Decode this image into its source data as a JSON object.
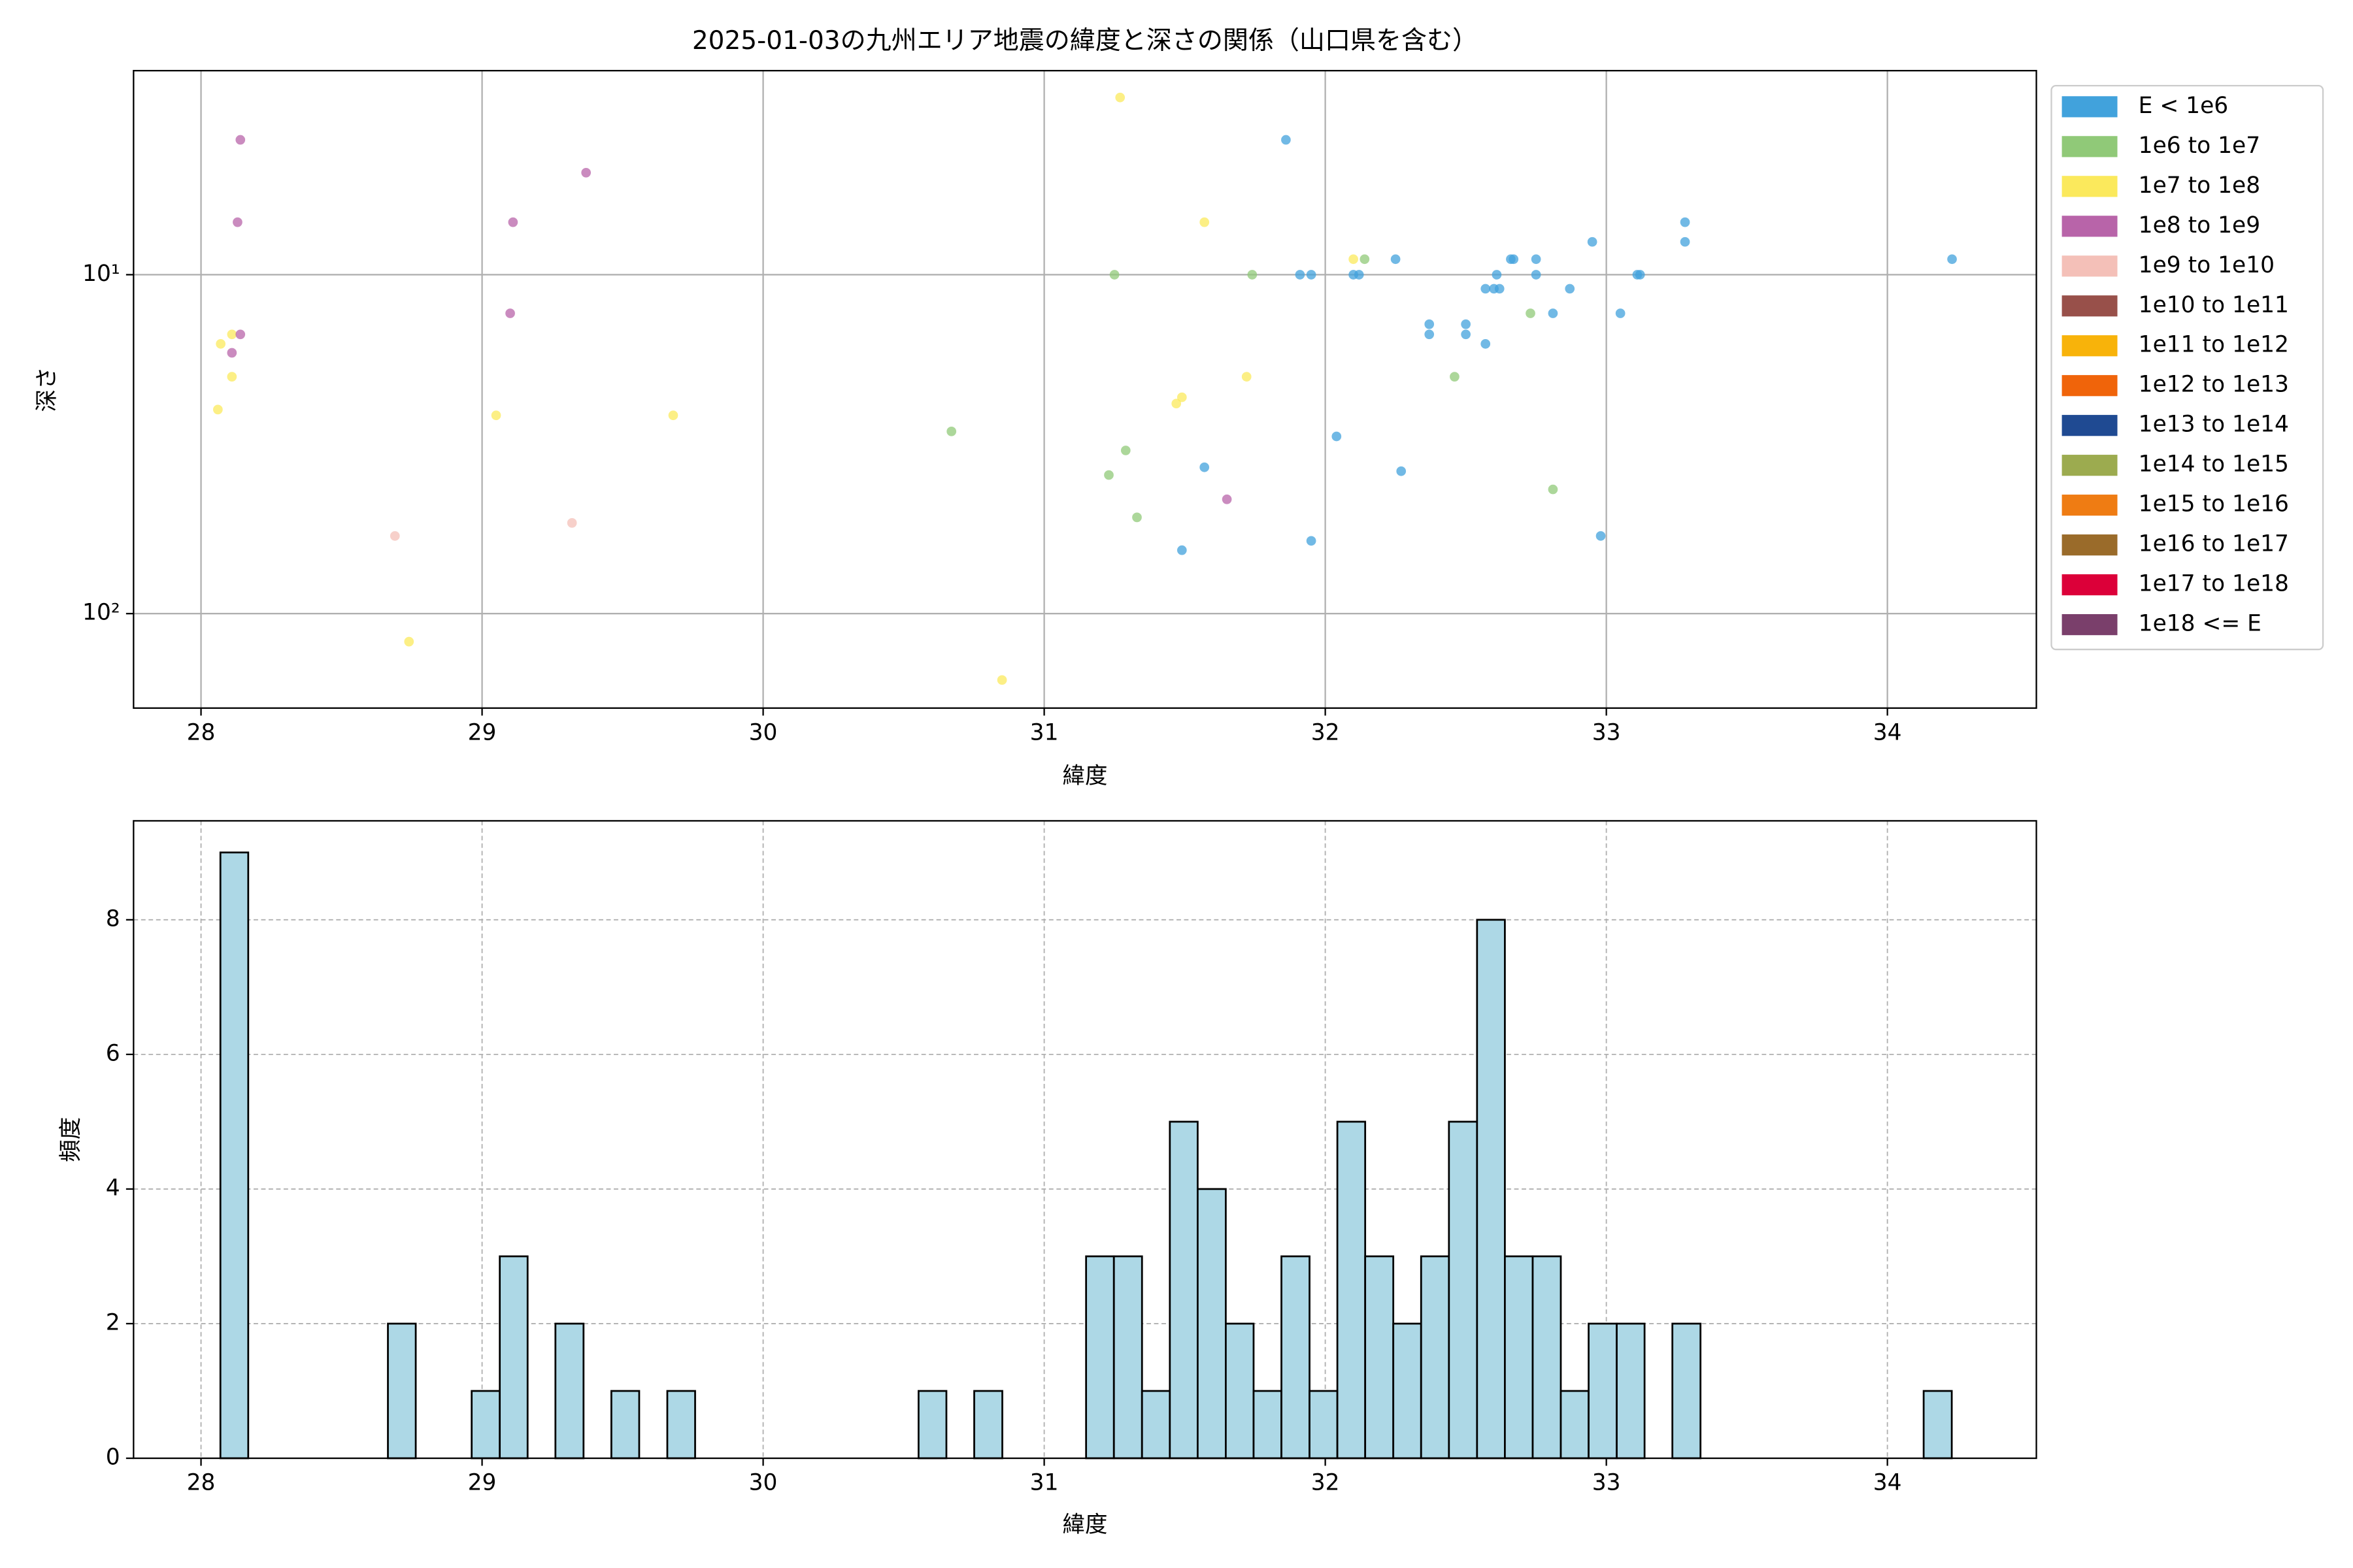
{
  "chart_data": [
    {
      "type": "scatter",
      "title": "2025-01-03の九州エリア地震の緯度と深さの関係（山口県を含む）",
      "xlabel": "緯度",
      "ylabel": "深さ",
      "xlim": [
        27.76,
        34.53
      ],
      "xticks": [
        28,
        29,
        30,
        31,
        32,
        33,
        34
      ],
      "ylim": [
        2.5,
        190
      ],
      "ylog": true,
      "yinverted": true,
      "yticks": [
        {
          "value": 10,
          "label": "10¹"
        },
        {
          "value": 100,
          "label": "10²"
        }
      ],
      "grid": true,
      "grid_style": "solid",
      "legend": "outside right",
      "series": [
        {
          "name": "E < 1e6",
          "color": "#41a2dc",
          "x": [
            31.86,
            31.91,
            31.95,
            32.1,
            32.12,
            32.25,
            32.37,
            32.37,
            32.5,
            32.5,
            32.57,
            32.57,
            32.6,
            32.62,
            32.61,
            32.66,
            32.67,
            32.75,
            32.75,
            32.81,
            32.87,
            32.95,
            33.05,
            33.11,
            33.12,
            33.28,
            33.28,
            34.23,
            31.57,
            32.04,
            32.27,
            31.95,
            32.98,
            31.49
          ],
          "y": [
            4,
            10,
            10,
            10,
            10,
            9,
            14,
            15,
            14,
            15,
            16,
            11,
            11,
            11,
            10,
            9,
            9,
            9,
            10,
            13,
            11,
            8,
            13,
            10,
            10,
            7,
            8,
            9,
            37,
            30,
            38,
            61,
            59,
            65
          ]
        },
        {
          "name": "1e6 to 1e7",
          "color": "#90c978",
          "x": [
            31.25,
            31.74,
            32.14,
            32.46,
            32.73,
            30.67,
            31.29,
            31.23,
            31.33,
            32.81
          ],
          "y": [
            10,
            10,
            9,
            20,
            13,
            29,
            33,
            39,
            52,
            43
          ]
        },
        {
          "name": "1e7 to 1e8",
          "color": "#fbe95c",
          "x": [
            31.27,
            31.57,
            32.1,
            31.72,
            31.49,
            31.47,
            28.07,
            28.11,
            28.06,
            28.11,
            29.05,
            29.68,
            28.74,
            30.85
          ],
          "y": [
            3,
            7,
            9,
            20,
            23,
            24,
            16,
            15,
            25,
            20,
            26,
            26,
            121,
            157
          ]
        },
        {
          "name": "1e8 to 1e9",
          "color": "#b864a9",
          "x": [
            28.14,
            28.13,
            28.14,
            28.11,
            29.37,
            29.11,
            29.1,
            31.65
          ],
          "y": [
            4,
            7,
            15,
            17,
            5,
            7,
            13,
            46
          ]
        },
        {
          "name": "1e9 to 1e10",
          "color": "#f4c0b8",
          "x": [
            28.69,
            29.32
          ],
          "y": [
            59,
            54
          ]
        },
        {
          "name": "1e10 to 1e11",
          "color": "#98504a",
          "x": [],
          "y": []
        },
        {
          "name": "1e11 to 1e12",
          "color": "#f8b30a",
          "x": [],
          "y": []
        },
        {
          "name": "1e12 to 1e13",
          "color": "#f0640a",
          "x": [],
          "y": []
        },
        {
          "name": "1e13 to 1e14",
          "color": "#1f4a92",
          "x": [],
          "y": []
        },
        {
          "name": "1e14 to 1e15",
          "color": "#9cab4f",
          "x": [],
          "y": []
        },
        {
          "name": "1e15 to 1e16",
          "color": "#ef7c13",
          "x": [],
          "y": []
        },
        {
          "name": "1e16 to 1e17",
          "color": "#9a6b2a",
          "x": [],
          "y": []
        },
        {
          "name": "1e17 to 1e18",
          "color": "#dc0039",
          "x": [],
          "y": []
        },
        {
          "name": "1e18 <= E",
          "color": "#7a3f6b",
          "x": [],
          "y": []
        }
      ]
    },
    {
      "type": "histogram",
      "xlabel": "緯度",
      "ylabel": "頻度",
      "xlim": [
        27.76,
        34.53
      ],
      "xticks": [
        28,
        29,
        30,
        31,
        32,
        33,
        34
      ],
      "ylim": [
        0,
        9.47
      ],
      "yticks": [
        0,
        2,
        4,
        6,
        8
      ],
      "grid": true,
      "grid_style": "dashed",
      "color": "#add8e6",
      "bins": [
        28.069,
        28.168,
        28.268,
        28.367,
        28.466,
        28.566,
        28.665,
        28.764,
        28.864,
        28.963,
        29.063,
        29.162,
        29.261,
        29.361,
        29.46,
        29.559,
        29.659,
        29.758,
        29.857,
        29.957,
        30.056,
        30.155,
        30.255,
        30.354,
        30.453,
        30.553,
        30.652,
        30.751,
        30.851,
        30.95,
        31.05,
        31.149,
        31.248,
        31.348,
        31.447,
        31.546,
        31.646,
        31.745,
        31.844,
        31.944,
        32.043,
        32.142,
        32.242,
        32.341,
        32.44,
        32.54,
        32.639,
        32.738,
        32.838,
        32.937,
        33.037,
        33.136,
        33.235,
        33.335,
        33.434,
        33.533,
        33.633,
        33.732,
        33.831,
        33.931,
        34.03,
        34.129,
        34.229
      ],
      "values": [
        9,
        0,
        0,
        0,
        0,
        0,
        2,
        0,
        0,
        1,
        3,
        0,
        2,
        0,
        1,
        0,
        1,
        0,
        0,
        0,
        0,
        0,
        0,
        0,
        0,
        1,
        0,
        1,
        0,
        0,
        0,
        3,
        3,
        1,
        5,
        4,
        2,
        1,
        3,
        1,
        5,
        3,
        2,
        3,
        5,
        8,
        3,
        3,
        1,
        2,
        2,
        0,
        2,
        0,
        0,
        0,
        0,
        0,
        0,
        0,
        0,
        1
      ]
    }
  ]
}
